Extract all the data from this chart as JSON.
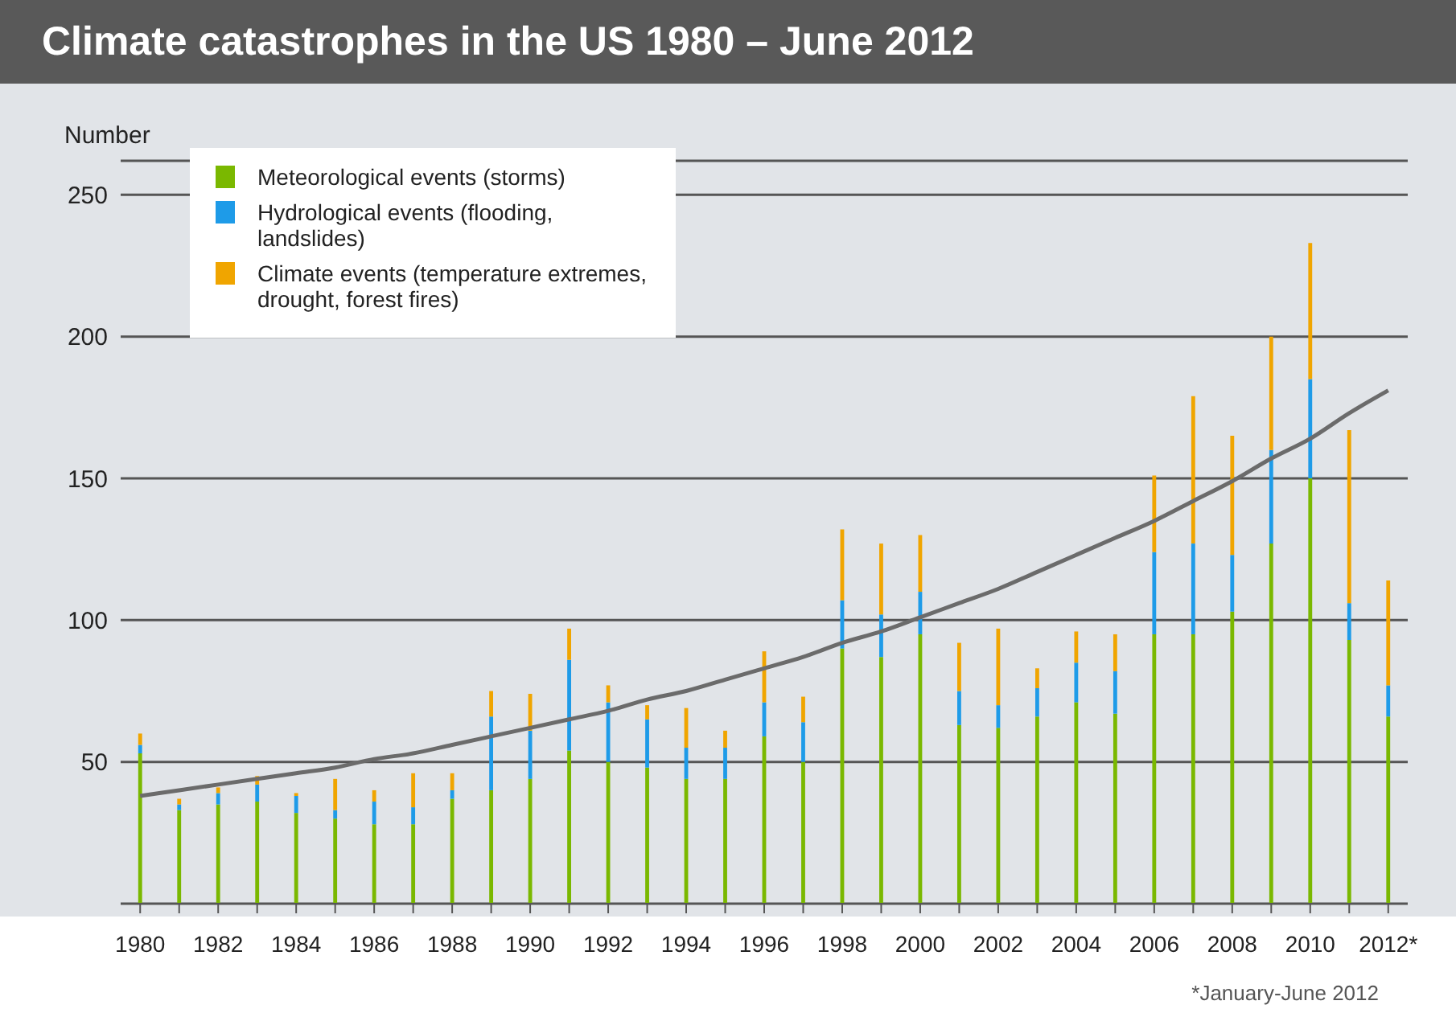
{
  "chart_data": {
    "type": "bar",
    "title": "Climate catastrophes in the US 1980 – June 2012",
    "ylabel": "Number",
    "categories": [
      "1980",
      null,
      "1982",
      null,
      "1984",
      null,
      "1986",
      null,
      "1988",
      null,
      "1990",
      null,
      "1992",
      null,
      "1994",
      null,
      "1996",
      null,
      "1998",
      null,
      "2000",
      null,
      "2002",
      null,
      "2004",
      null,
      "2006",
      null,
      "2008",
      null,
      "2010",
      null,
      "2012*"
    ],
    "stacked": true,
    "series": [
      {
        "name": "Meteorological events (storms)",
        "color": "#7ab800",
        "values": [
          53,
          33,
          35,
          36,
          32,
          30,
          28,
          28,
          37,
          40,
          44,
          54,
          50,
          48,
          44,
          44,
          59,
          50,
          90,
          87,
          95,
          63,
          62,
          66,
          71,
          67,
          95,
          95,
          103,
          127,
          150,
          93,
          66
        ]
      },
      {
        "name": "Hydrological events (flooding, landslides)",
        "color": "#1e9be8",
        "values": [
          3,
          2,
          4,
          6,
          6,
          3,
          8,
          6,
          3,
          26,
          17,
          32,
          21,
          17,
          11,
          11,
          12,
          14,
          17,
          15,
          15,
          12,
          8,
          10,
          14,
          15,
          29,
          32,
          20,
          33,
          35,
          13,
          11
        ]
      },
      {
        "name": "Climate events (temperature extremes, drought, forest fires)",
        "color": "#f0a500",
        "values": [
          4,
          2,
          2,
          3,
          1,
          11,
          4,
          12,
          6,
          9,
          13,
          11,
          6,
          5,
          14,
          6,
          18,
          9,
          25,
          25,
          20,
          17,
          27,
          7,
          11,
          13,
          27,
          52,
          42,
          40,
          48,
          61,
          37
        ]
      },
      {
        "type": "line",
        "color": "#6b6b6b",
        "values": [
          38,
          40,
          42,
          44,
          46,
          48,
          51,
          53,
          56,
          59,
          62,
          65,
          68,
          72,
          75,
          79,
          83,
          87,
          92,
          96,
          101,
          106,
          111,
          117,
          123,
          129,
          135,
          142,
          149,
          157,
          164,
          173,
          181
        ]
      }
    ],
    "ylim": [
      0,
      262
    ],
    "yticks": [
      50,
      100,
      150,
      200,
      250
    ],
    "grid": "y",
    "legend": "top left",
    "annotations": [
      "*January-June 2012"
    ]
  }
}
